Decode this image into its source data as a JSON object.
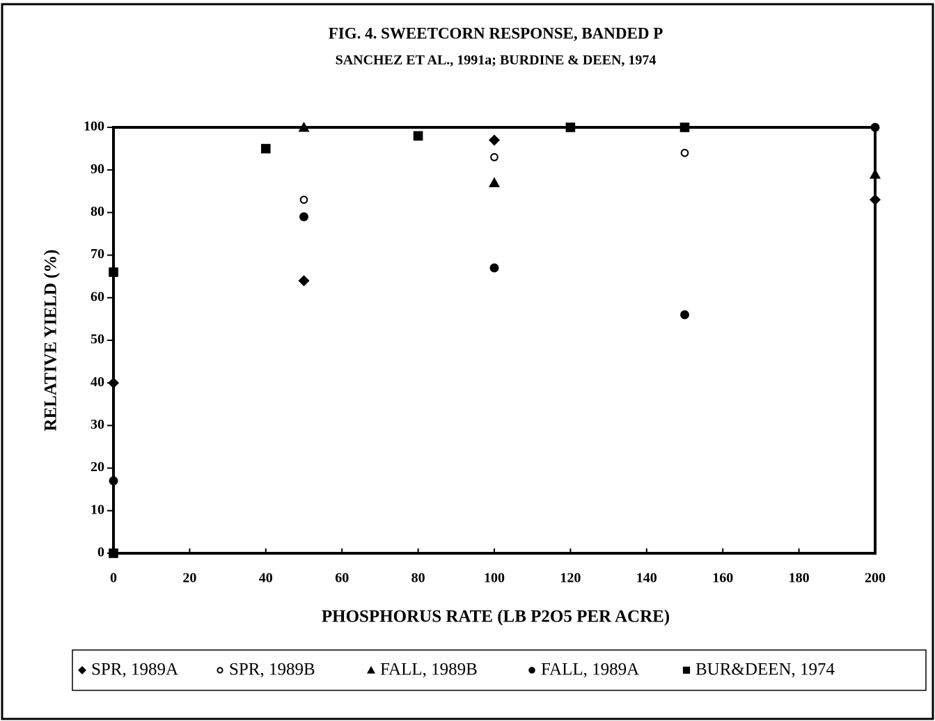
{
  "chart_data": {
    "type": "scatter",
    "title": "FIG. 4.  SWEETCORN RESPONSE, BANDED P",
    "subtitle": "SANCHEZ ET AL., 1991a; BURDINE & DEEN, 1974",
    "x_label": "PHOSPHORUS RATE (LB P2O5 PER ACRE)",
    "y_label": "RELATIVE YIELD (%)",
    "xlim": [
      0,
      200
    ],
    "xticks": [
      0,
      20,
      40,
      60,
      80,
      100,
      120,
      140,
      160,
      180,
      200
    ],
    "ylim": [
      0,
      100
    ],
    "yticks": [
      0,
      10,
      20,
      30,
      40,
      50,
      60,
      70,
      80,
      90,
      100
    ],
    "series": [
      {
        "name": "SPR, 1989A",
        "marker": "diamond",
        "color": "#000000",
        "x": [
          0,
          50,
          100,
          200
        ],
        "values": [
          40,
          64,
          97,
          83
        ]
      },
      {
        "name": "SPR, 1989B",
        "marker": "open-circle",
        "color": "#000000",
        "x": [
          50,
          100,
          150
        ],
        "values": [
          83,
          93,
          94
        ]
      },
      {
        "name": "FALL, 1989B",
        "marker": "triangle",
        "color": "#000000",
        "x": [
          50,
          100,
          200
        ],
        "values": [
          100,
          87,
          89
        ]
      },
      {
        "name": "FALL, 1989A",
        "marker": "circle",
        "color": "#000000",
        "x": [
          0,
          50,
          100,
          150,
          200
        ],
        "values": [
          17,
          79,
          67,
          56,
          100
        ]
      },
      {
        "name": "BUR&DEEN, 1974",
        "marker": "square",
        "color": "#000000",
        "x": [
          0,
          0,
          40,
          80,
          120,
          150
        ],
        "values": [
          0,
          66,
          95,
          98,
          100,
          100
        ]
      }
    ]
  }
}
